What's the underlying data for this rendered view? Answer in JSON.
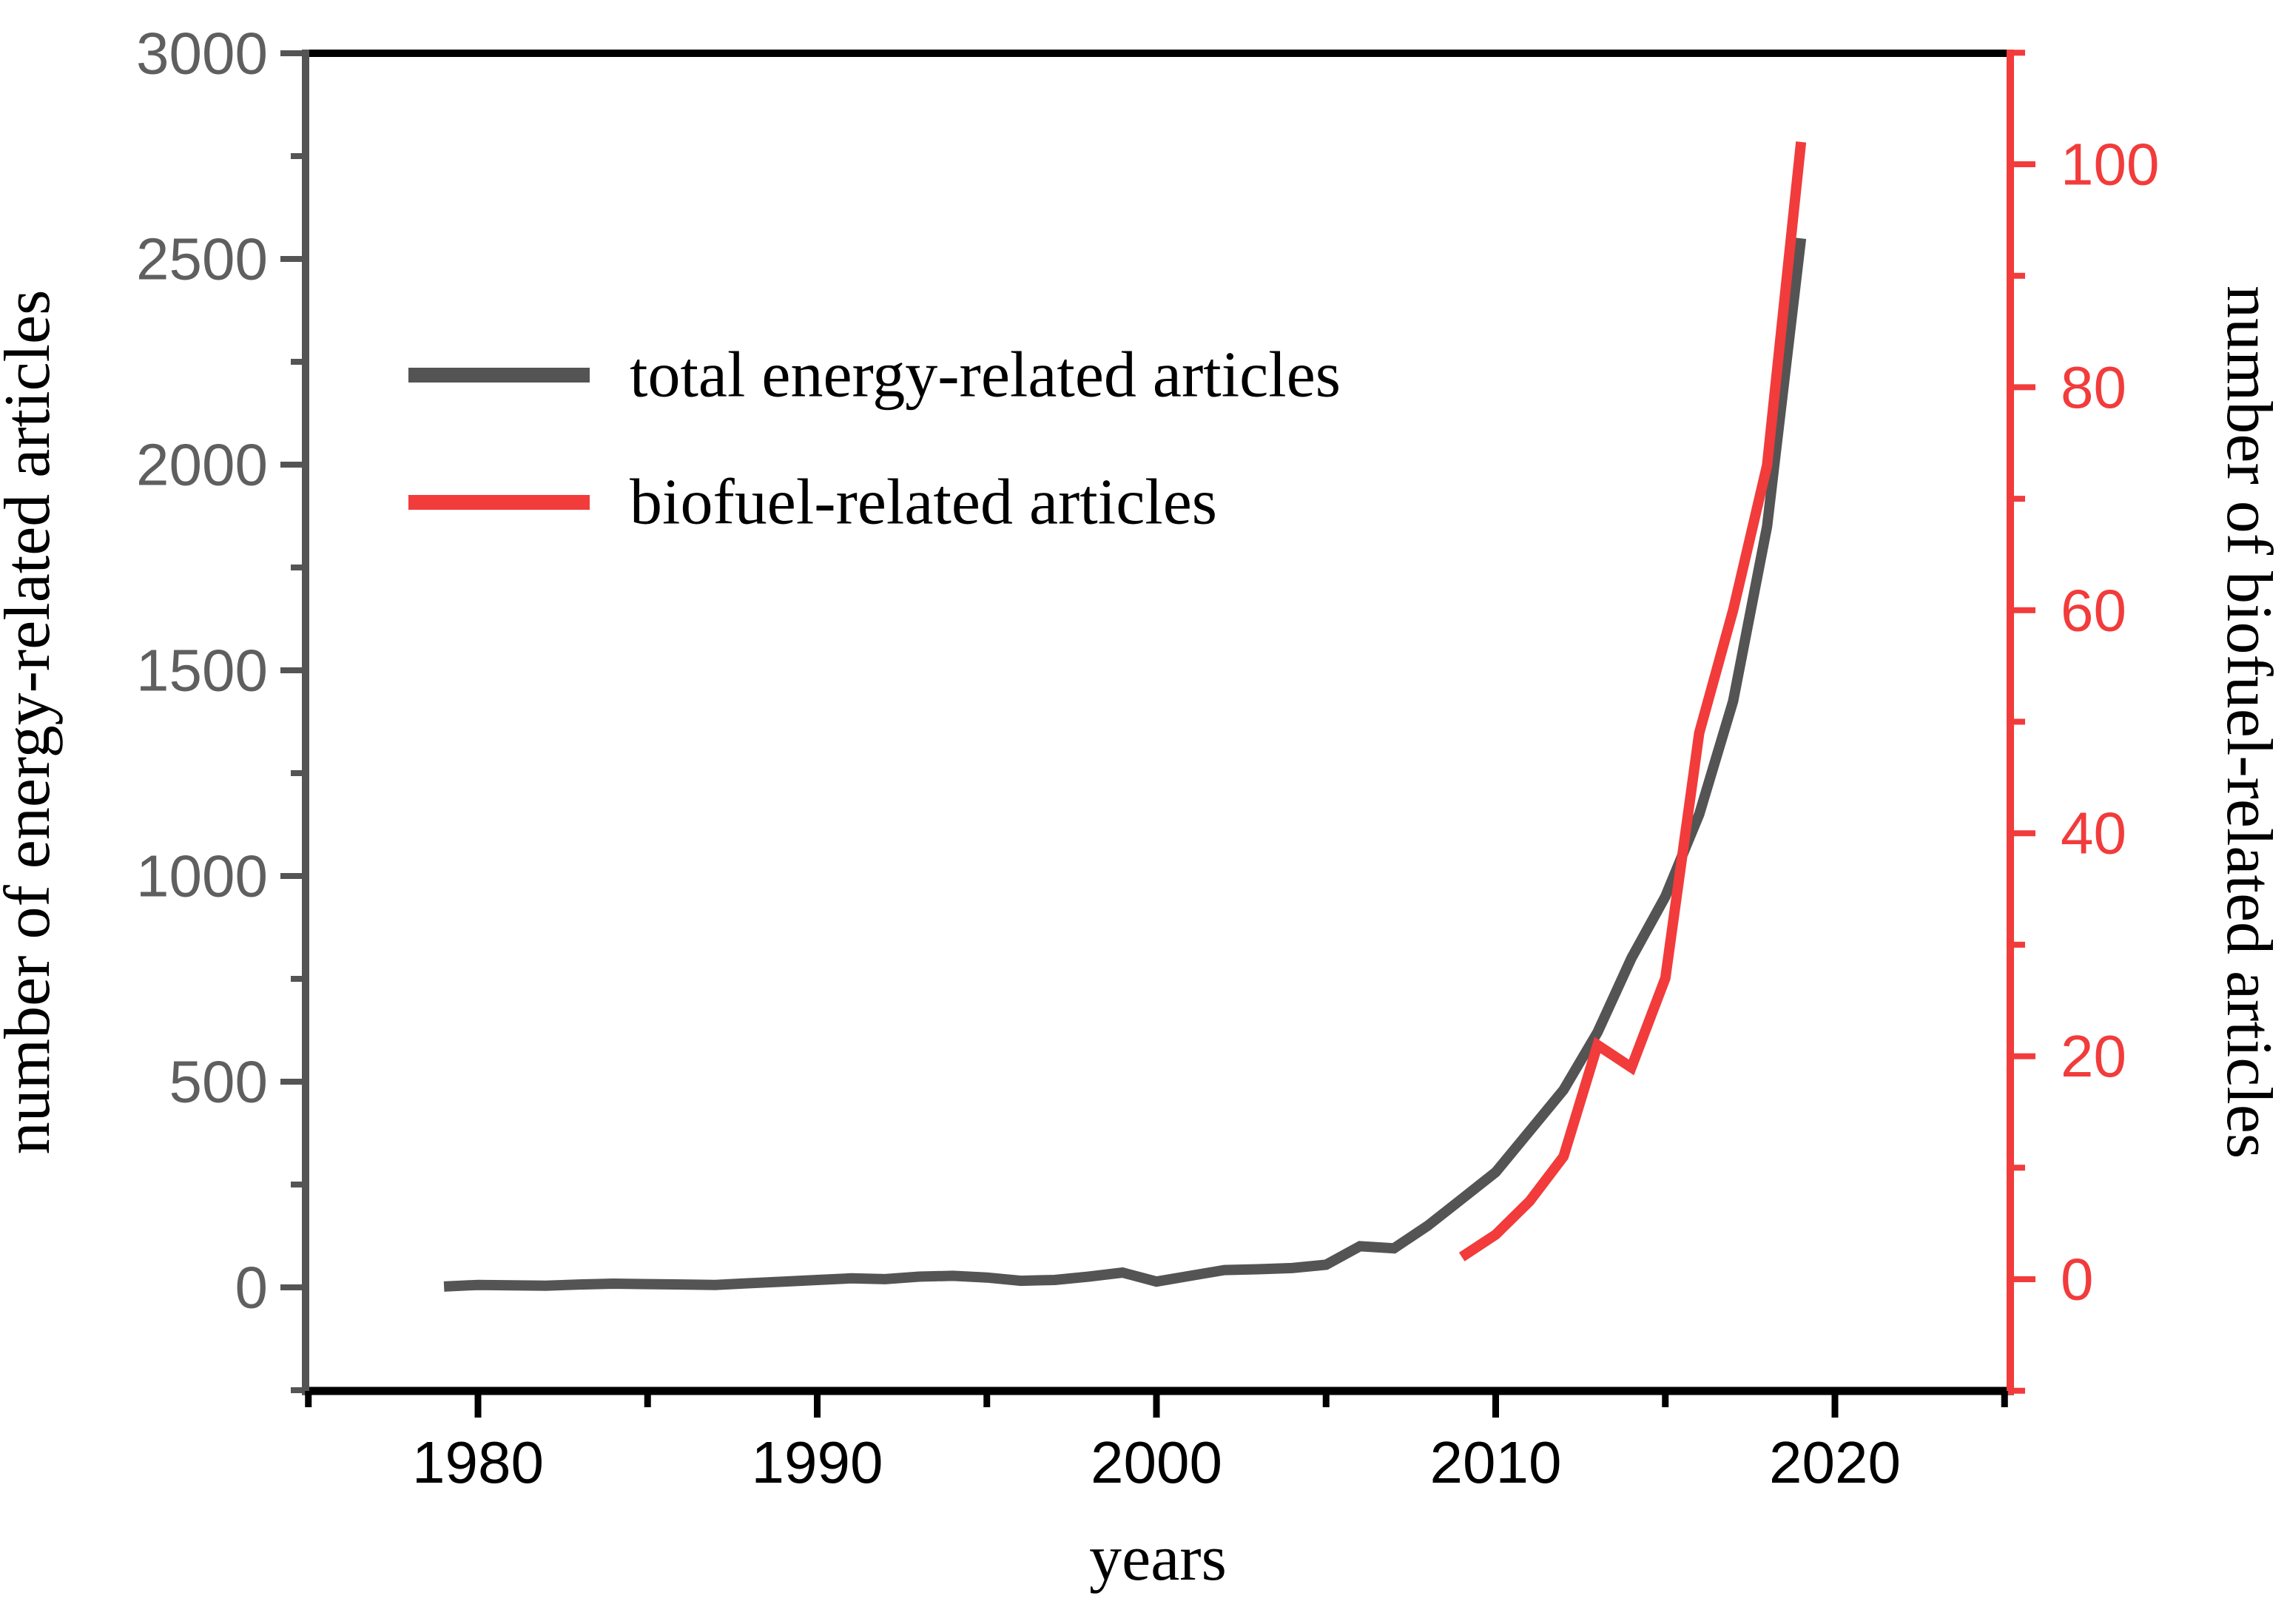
{
  "figure": {
    "background": "#ffffff",
    "xlabel": "years",
    "ylabel_left": "number of energy-related articles",
    "ylabel_right": "number of biofuel-related articles"
  },
  "colors": {
    "energy_line": "#545454",
    "biofuel_line": "#F23B3B",
    "left_axis": "#545454",
    "left_tick_label": "#5f5f5f",
    "right_axis": "#F23B3B",
    "right_tick_label": "#F23B3B",
    "bottom_axis": "#000000",
    "top_axis": "#000000",
    "bottom_tick_label": "#000000"
  },
  "legend": {
    "entries": [
      {
        "label": "total energy-related articles",
        "color": "#545454"
      },
      {
        "label": "biofuel-related articles",
        "color": "#F23B3B"
      }
    ]
  },
  "chart_data": {
    "type": "line",
    "title": "",
    "xlabel": "years",
    "ylabel_left": "number of energy-related articles",
    "ylabel_right": "number of biofuel-related articles",
    "x_range": [
      1975,
      2025
    ],
    "y_left_range": [
      -250,
      3000
    ],
    "y_right_range": [
      -10,
      110
    ],
    "grid": false,
    "legend_position": "inside-upper-left",
    "x_major_ticks": [
      1980,
      1990,
      2000,
      2010,
      2020
    ],
    "x_major_tick_labels": [
      "1980",
      "1990",
      "2000",
      "2010",
      "2020"
    ],
    "x_minor_ticks": [
      1975,
      1985,
      1995,
      2005,
      2015,
      2025
    ],
    "y_left_major_ticks": [
      0,
      500,
      1000,
      1500,
      2000,
      2500,
      3000
    ],
    "y_left_major_tick_labels": [
      "0",
      "500",
      "1000",
      "1500",
      "2000",
      "2500",
      "3000"
    ],
    "y_left_minor_ticks": [
      -250,
      250,
      750,
      1250,
      1750,
      2250,
      2750
    ],
    "y_right_major_ticks": [
      0,
      20,
      40,
      60,
      80,
      100
    ],
    "y_right_major_tick_labels": [
      "0",
      "20",
      "40",
      "60",
      "80",
      "100"
    ],
    "y_right_minor_ticks": [
      -10,
      10,
      30,
      50,
      70,
      90,
      110
    ],
    "series": [
      {
        "name": "total energy-related articles",
        "axis": "left",
        "color": "#545454",
        "x": [
          1979,
          1980,
          1981,
          1982,
          1983,
          1984,
          1985,
          1986,
          1987,
          1988,
          1989,
          1990,
          1991,
          1992,
          1993,
          1994,
          1995,
          1996,
          1997,
          1998,
          1999,
          2000,
          2001,
          2002,
          2003,
          2004,
          2005,
          2006,
          2007,
          2008,
          2009,
          2010,
          2011,
          2012,
          2013,
          2014,
          2015,
          2016,
          2017,
          2018,
          2019
        ],
        "y": [
          2,
          6,
          5,
          4,
          7,
          9,
          8,
          7,
          6,
          10,
          14,
          18,
          22,
          20,
          26,
          28,
          24,
          16,
          18,
          26,
          36,
          14,
          28,
          42,
          44,
          47,
          55,
          100,
          95,
          150,
          215,
          280,
          380,
          480,
          620,
          800,
          950,
          1150,
          1425,
          1850,
          2550
        ]
      },
      {
        "name": "biofuel-related articles",
        "axis": "right",
        "color": "#F23B3B",
        "x": [
          2009,
          2010,
          2011,
          2012,
          2013,
          2014,
          2015,
          2016,
          2017,
          2018,
          2019
        ],
        "y": [
          2,
          4,
          7,
          11,
          21,
          19,
          27,
          49,
          60,
          73,
          102
        ]
      }
    ]
  }
}
